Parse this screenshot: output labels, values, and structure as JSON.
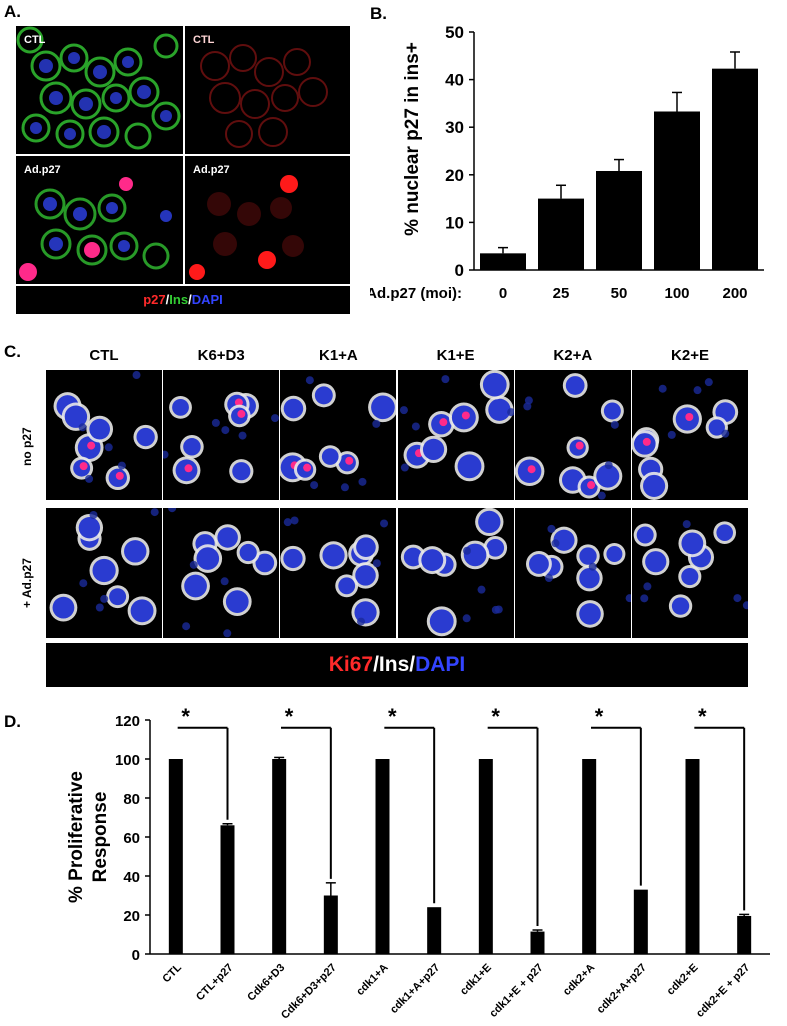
{
  "panelA": {
    "label": "A.",
    "tiles": [
      {
        "label": "CTL",
        "type": "merge-ctl"
      },
      {
        "label": "CTL",
        "type": "red-ctl"
      },
      {
        "label": "Ad.p27",
        "type": "merge-p27"
      },
      {
        "label": "Ad.p27",
        "type": "red-p27"
      }
    ],
    "legend": {
      "p27": "p27",
      "sep1": "/",
      "ins": "Ins",
      "sep2": "/",
      "dapi": "DAPI"
    },
    "colors": {
      "red": "#ff2a2a",
      "green": "#33cc33",
      "blue": "#3344ff"
    }
  },
  "panelB": {
    "label": "B.",
    "chart_data": {
      "type": "bar",
      "categories": [
        "0",
        "25",
        "50",
        "100",
        "200"
      ],
      "values": [
        3.5,
        15,
        20.8,
        33.3,
        42.3
      ],
      "errors": [
        1.2,
        2.8,
        2.4,
        4.0,
        3.5
      ],
      "ylabel": "% nuclear p27 in ins+",
      "xlabel": "Ad.p27 (moi):",
      "ylim": [
        0,
        50
      ],
      "yticks": [
        0,
        10,
        20,
        30,
        40,
        50
      ]
    }
  },
  "panelC": {
    "label": "C.",
    "columns": [
      "CTL",
      "K6+D3",
      "K1+A",
      "K1+E",
      "K2+A",
      "K2+E"
    ],
    "rows": [
      "no p27",
      "+ Ad.p27"
    ],
    "legend": {
      "ki67": "Ki67",
      "sep1": "/",
      "ins": "Ins",
      "sep2": "/",
      "dapi": "DAPI"
    }
  },
  "panelD": {
    "label": "D.",
    "chart_data": {
      "type": "bar",
      "categories": [
        "CTL",
        "CTL+p27",
        "Cdk6+D3",
        "Cdk6+D3+p27",
        "cdk1+A",
        "cdk1+A+p27",
        "cdk1+E",
        "cdk1+E + p27",
        "cdk2+A",
        "cdk2+A+p27",
        "cdk2+E",
        "cdk2+E + p27"
      ],
      "values": [
        100,
        66,
        100,
        30,
        100,
        24,
        100,
        11.5,
        100,
        33,
        100,
        19.5
      ],
      "errors": [
        0,
        0.8,
        0.8,
        6.5,
        0,
        0,
        0,
        0.8,
        0,
        0,
        0,
        0.8
      ],
      "ylabel": "% Proliferative Response",
      "ylim": [
        0,
        120
      ],
      "yticks": [
        0,
        20,
        40,
        60,
        80,
        100,
        120
      ],
      "significance": [
        "*",
        "*",
        "*",
        "*",
        "*",
        "*"
      ]
    }
  }
}
